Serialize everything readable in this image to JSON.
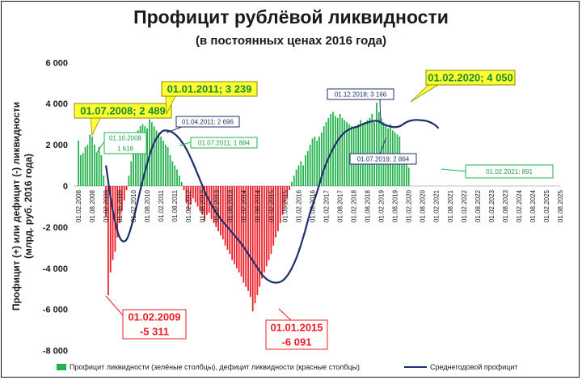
{
  "title": "Профицит рублёвой ликвидности",
  "subtitle": "(в постоянных ценах 2016 года)",
  "chart_data": {
    "type": "bar",
    "ylabel_line1": "Профицит (+) или дефицит (-) ликвидности",
    "ylabel_line2": "(млрд. руб. 2016 года)",
    "ylim": [
      -8000,
      6000
    ],
    "yticks": [
      6000,
      4000,
      2000,
      0,
      -2000,
      -4000,
      -6000,
      -8000
    ],
    "ytick_labels": [
      "6 000",
      "4 000",
      "2 000",
      "0",
      "-2 000",
      "-4 000",
      "-6 000",
      "-8 000"
    ],
    "x_start": "2008-02",
    "x_end": "2025-08",
    "xtick_labels": [
      "01.02.2008",
      "01.08.2008",
      "01.02.2009",
      "01.08.2009",
      "01.02.2010",
      "01.08.2010",
      "01.02.2011",
      "01.08.2011",
      "01.02.2012",
      "01.08.2012",
      "01.02.2013",
      "01.08.2013",
      "01.02.2014",
      "01.08.2014",
      "01.02.2015",
      "01.08.2015",
      "01.02.2016",
      "01.08.2016",
      "01.02.2017",
      "01.08.2017",
      "01.02.2018",
      "01.08.2018",
      "01.02.2019",
      "01.08.2019",
      "01.02.2020",
      "01.08.2020",
      "01.02.2021",
      "01.08.2021",
      "01.02.2022",
      "01.08.2022",
      "01.02.2023",
      "01.08.2023",
      "01.02.2024",
      "01.08.2024",
      "01.02.2025",
      "01.08.2025"
    ],
    "bar_start": "2008-02",
    "bar_values": [
      2200,
      1500,
      1600,
      1900,
      2000,
      2489,
      2400,
      2000,
      1618,
      1900,
      1500,
      500,
      -1500,
      -5311,
      -4200,
      -3600,
      -3200,
      -2500,
      -1800,
      -1200,
      -700,
      -200,
      500,
      1200,
      1800,
      2300,
      2700,
      2900,
      3000,
      2900,
      2800,
      3239,
      3100,
      2900,
      2700,
      2600,
      2400,
      2200,
      2000,
      1884,
      1500,
      1200,
      1000,
      800,
      500,
      200,
      -200,
      -800,
      -1200,
      -900,
      -600,
      -800,
      -1000,
      -1200,
      -1400,
      -1700,
      -1400,
      -1300,
      -1600,
      -1800,
      -2000,
      -2200,
      -2400,
      -2600,
      -2900,
      -3100,
      -3300,
      -3600,
      -3800,
      -4000,
      -4200,
      -4400,
      -4700,
      -4900,
      -5100,
      -5400,
      -6091,
      -5700,
      -5300,
      -4900,
      -4500,
      -4200,
      -3900,
      -3600,
      -3300,
      -2900,
      -2500,
      -2200,
      -1800,
      -1400,
      -1000,
      -600,
      -200,
      200,
      500,
      800,
      1000,
      1200,
      1000,
      1500,
      1700,
      2000,
      2300,
      2400,
      2200,
      2400,
      2600,
      2900,
      3100,
      3300,
      3500,
      3600,
      3400,
      3300,
      3500,
      3300,
      3200,
      3100,
      3000,
      2900,
      2800,
      2864,
      3000,
      3200,
      3000,
      3100,
      3200,
      3300,
      3500,
      3100,
      4050,
      3600,
      3300,
      3100,
      3000,
      2800,
      3000,
      2700,
      2600,
      2500,
      2400,
      1500,
      1400,
      1200,
      891
    ],
    "series": [
      {
        "name": "Профицит ликвидности (зелёные столбцы), дефицит ликвидности (красные столбцы)",
        "color_positive": "#22b14c",
        "color_negative": "#ed1c24"
      },
      {
        "name": "Среднегодовой профицит",
        "color": "#1f2f6b",
        "x": [
          "2009-02",
          "2009-05",
          "2009-08",
          "2009-11",
          "2010-02",
          "2010-05",
          "2010-08",
          "2010-11",
          "2011-02",
          "2011-04",
          "2011-07",
          "2011-10",
          "2012-01",
          "2012-04",
          "2012-07",
          "2012-10",
          "2013-01",
          "2013-04",
          "2013-07",
          "2013-10",
          "2014-01",
          "2014-04",
          "2014-07",
          "2014-10",
          "2015-01",
          "2015-04",
          "2015-07",
          "2015-10",
          "2016-01",
          "2016-04",
          "2016-07",
          "2016-10",
          "2017-01",
          "2017-04",
          "2017-07",
          "2017-10",
          "2018-01",
          "2018-04",
          "2018-07",
          "2018-12",
          "2019-03",
          "2019-07",
          "2019-10",
          "2020-01",
          "2020-04",
          "2020-07",
          "2020-10",
          "2021-01",
          "2021-03"
        ],
        "y": [
          1000,
          -1200,
          -2500,
          -2600,
          -1600,
          -200,
          1100,
          2100,
          2600,
          2696,
          2600,
          2300,
          1800,
          1100,
          300,
          -500,
          -1100,
          -1600,
          -2000,
          -2400,
          -2800,
          -3300,
          -3800,
          -4300,
          -4600,
          -4700,
          -4600,
          -4200,
          -3500,
          -2500,
          -1300,
          -300,
          800,
          1600,
          2200,
          2600,
          2800,
          2900,
          3050,
          3166,
          3000,
          2864,
          2900,
          3100,
          3200,
          3200,
          3150,
          3000,
          2800
        ]
      }
    ],
    "annotations": [
      {
        "text": "01.07.2008; 2 489"
      },
      {
        "text": "01.01.2011; 3 239"
      },
      {
        "text": "01.02.2020; 4 050"
      },
      {
        "text": "01.10.2008"
      },
      {
        "text": "1 618"
      },
      {
        "text": "01.04.2011; 2 696"
      },
      {
        "text": "01.07.2011; 1 884"
      },
      {
        "text": "01.12.2018; 3 166"
      },
      {
        "text": "01.07.2019; 2 864"
      },
      {
        "text": "01.02.2021; 891"
      },
      {
        "text": "01.02.2009"
      },
      {
        "text": "-5 311"
      },
      {
        "text": "01.01.2015"
      },
      {
        "text": "-6 091"
      }
    ],
    "legend": "bottom",
    "grid": false
  }
}
